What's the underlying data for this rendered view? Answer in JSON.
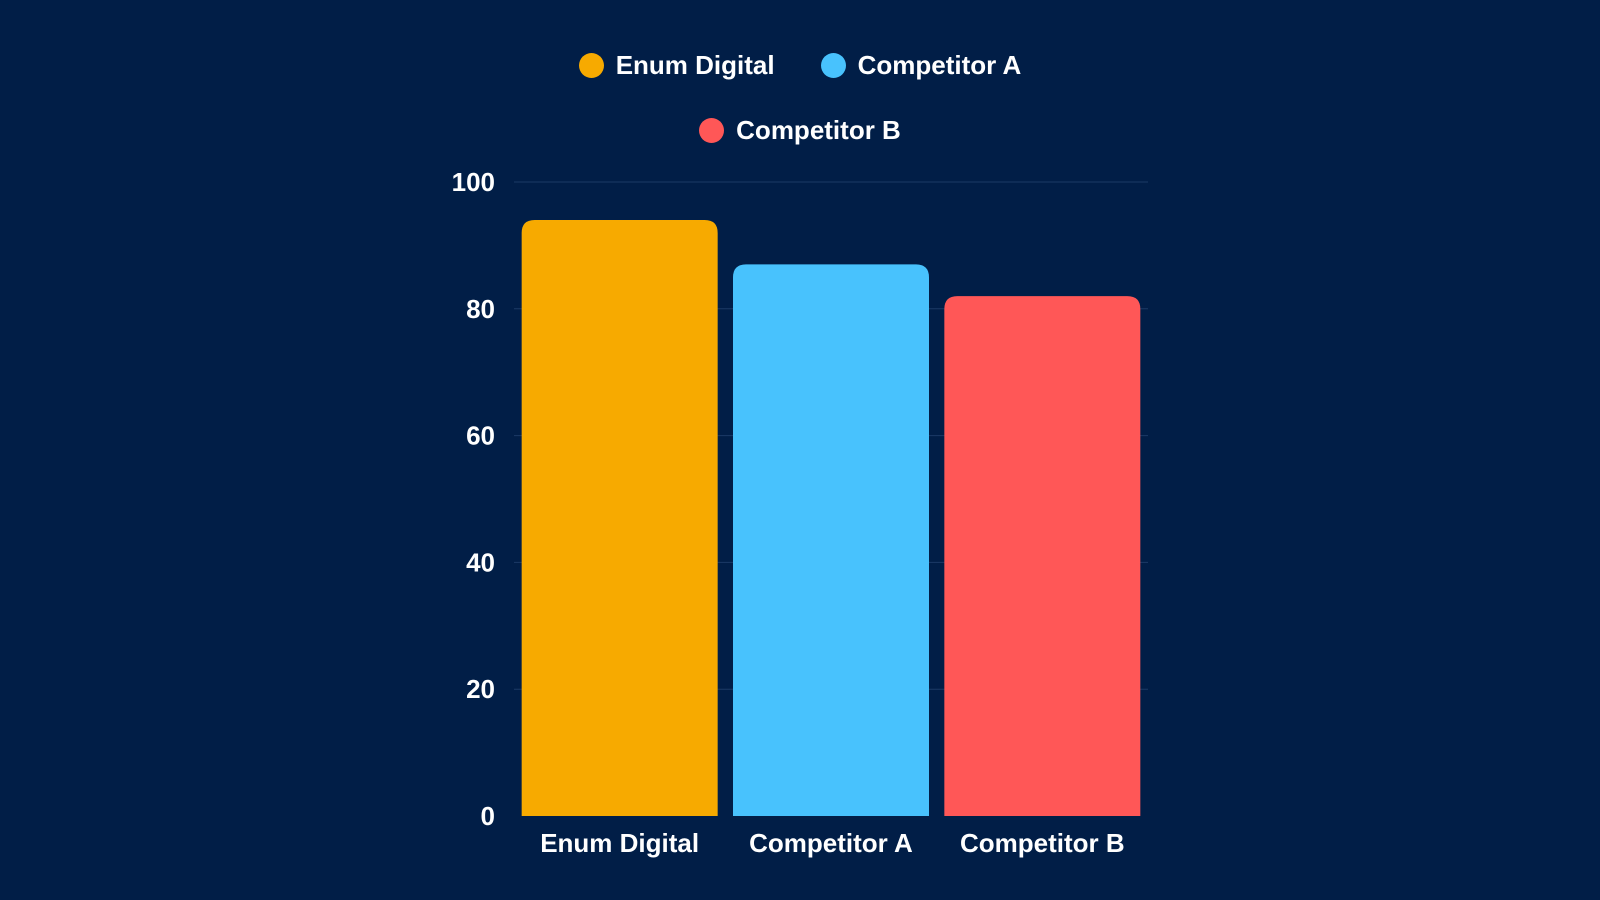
{
  "chart_data": {
    "type": "bar",
    "categories": [
      "Enum Digital",
      "Competitor A",
      "Competitor B"
    ],
    "values": [
      94,
      87,
      82
    ],
    "colors": [
      "#f7aa00",
      "#48c2fd",
      "#ff5757"
    ],
    "ylim": [
      0,
      100
    ],
    "yticks": [
      "0",
      "20",
      "40",
      "60",
      "80",
      "100"
    ],
    "grid": true,
    "legend_placement": "top-center",
    "legend": [
      {
        "label": "Enum Digital",
        "color": "#f7aa00"
      },
      {
        "label": "Competitor A",
        "color": "#48c2fd"
      },
      {
        "label": "Competitor B",
        "color": "#ff5757"
      }
    ]
  },
  "colors": {
    "background": "#011e47",
    "text": "#ffffff",
    "gridline": "#1c3a66"
  }
}
